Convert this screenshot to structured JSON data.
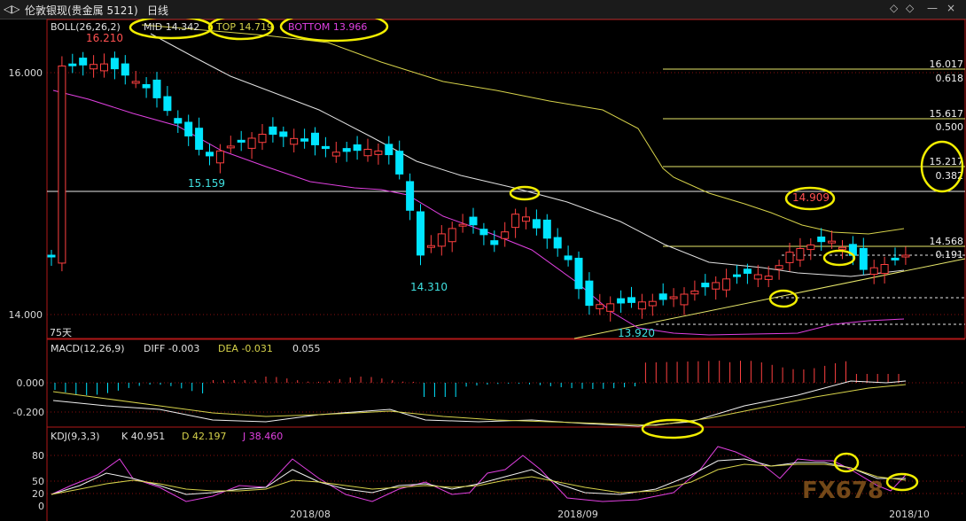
{
  "window": {
    "nav_glyph": "◁▷",
    "title": "伦敦银现(贵金属 5121)",
    "period": "日线",
    "controls": [
      "◇",
      "◇",
      "—",
      "×"
    ]
  },
  "boll": {
    "title": "BOLL(26,26,2)",
    "mid": "MID 14.342",
    "top": "TOP 14.719",
    "bottom": "BOTTOM 13.966",
    "high_label": "16.210",
    "low_label_a": "15.159",
    "low_label_b": "14.310",
    "low_label_c": "13.920",
    "swing_high": "14.909",
    "days": "75天"
  },
  "price_axis": [
    "16.000",
    "14.000"
  ],
  "fib": [
    {
      "price": "16.017",
      "ratio": "0.618"
    },
    {
      "price": "15.617",
      "ratio": "0.500"
    },
    {
      "price": "15.217",
      "ratio": "0.382"
    },
    {
      "price": "14.568",
      "ratio": "0.191"
    }
  ],
  "macd": {
    "title": "MACD(12,26,9)",
    "diff": "DIFF -0.003",
    "dea": "DEA -0.031",
    "macd": "0.055",
    "axis": [
      "0.000",
      "-0.200"
    ]
  },
  "kdj": {
    "title": "KDJ(9,3,3)",
    "k": "K 40.951",
    "d": "D 42.197",
    "j": "J 38.460",
    "axis": [
      "80",
      "50",
      "20",
      "0"
    ]
  },
  "dates": [
    "2018/08",
    "2018/09",
    "2018/10"
  ],
  "watermark": "FX678",
  "colors": {
    "up": "#ff4040",
    "down": "#00e5ff",
    "mid": "#e0e0e0",
    "top": "#d6d24a",
    "bottom": "#e040e0",
    "fib": "#e6e66a",
    "highlight": "#f2ee00"
  }
}
